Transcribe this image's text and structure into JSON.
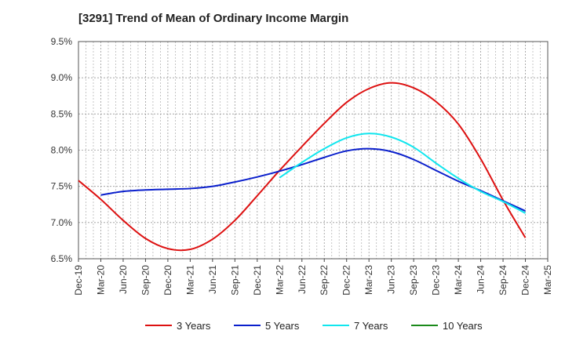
{
  "chart_data": {
    "type": "line",
    "title": "[3291]  Trend of Mean of Ordinary Income Margin",
    "xlabel": "",
    "ylabel": "",
    "x_ticks": [
      "Dec-19",
      "Mar-20",
      "Jun-20",
      "Sep-20",
      "Dec-20",
      "Mar-21",
      "Jun-21",
      "Sep-21",
      "Dec-21",
      "Mar-22",
      "Jun-22",
      "Sep-22",
      "Dec-22",
      "Mar-23",
      "Jun-23",
      "Sep-23",
      "Dec-23",
      "Mar-24",
      "Jun-24",
      "Sep-24",
      "Dec-24",
      "Mar-25"
    ],
    "y_ticks": [
      "6.5%",
      "7.0%",
      "7.5%",
      "8.0%",
      "8.5%",
      "9.0%",
      "9.5%"
    ],
    "ylim": [
      6.5,
      9.5
    ],
    "grid": true,
    "legend_position": "bottom",
    "series": [
      {
        "name": "3 Years",
        "color": "#dd1111",
        "points": [
          [
            "Dec-19",
            7.58
          ],
          [
            "Mar-20",
            7.32
          ],
          [
            "Jun-20",
            7.03
          ],
          [
            "Sep-20",
            6.78
          ],
          [
            "Dec-20",
            6.64
          ],
          [
            "Mar-21",
            6.63
          ],
          [
            "Jun-21",
            6.77
          ],
          [
            "Sep-21",
            7.03
          ],
          [
            "Dec-21",
            7.37
          ],
          [
            "Mar-22",
            7.72
          ],
          [
            "Jun-22",
            8.05
          ],
          [
            "Sep-22",
            8.37
          ],
          [
            "Dec-22",
            8.66
          ],
          [
            "Mar-23",
            8.85
          ],
          [
            "Jun-23",
            8.93
          ],
          [
            "Sep-23",
            8.86
          ],
          [
            "Dec-23",
            8.67
          ],
          [
            "Mar-24",
            8.36
          ],
          [
            "Jun-24",
            7.88
          ],
          [
            "Sep-24",
            7.31
          ],
          [
            "Dec-24",
            6.79
          ]
        ]
      },
      {
        "name": "5 Years",
        "color": "#0a1fcc",
        "points": [
          [
            "Mar-20",
            7.38
          ],
          [
            "Jun-20",
            7.43
          ],
          [
            "Sep-20",
            7.45
          ],
          [
            "Dec-20",
            7.46
          ],
          [
            "Mar-21",
            7.47
          ],
          [
            "Jun-21",
            7.5
          ],
          [
            "Sep-21",
            7.56
          ],
          [
            "Dec-21",
            7.63
          ],
          [
            "Mar-22",
            7.71
          ],
          [
            "Jun-22",
            7.8
          ],
          [
            "Sep-22",
            7.9
          ],
          [
            "Dec-22",
            7.99
          ],
          [
            "Mar-23",
            8.02
          ],
          [
            "Jun-23",
            7.98
          ],
          [
            "Sep-23",
            7.87
          ],
          [
            "Dec-23",
            7.72
          ],
          [
            "Mar-24",
            7.57
          ],
          [
            "Jun-24",
            7.44
          ],
          [
            "Sep-24",
            7.3
          ],
          [
            "Dec-24",
            7.16
          ]
        ]
      },
      {
        "name": "7 Years",
        "color": "#11e6ee",
        "points": [
          [
            "Mar-22",
            7.62
          ],
          [
            "Jun-22",
            7.83
          ],
          [
            "Sep-22",
            8.02
          ],
          [
            "Dec-22",
            8.17
          ],
          [
            "Mar-23",
            8.23
          ],
          [
            "Jun-23",
            8.18
          ],
          [
            "Sep-23",
            8.04
          ],
          [
            "Dec-23",
            7.82
          ],
          [
            "Mar-24",
            7.61
          ],
          [
            "Jun-24",
            7.43
          ],
          [
            "Sep-24",
            7.29
          ],
          [
            "Dec-24",
            7.13
          ]
        ]
      },
      {
        "name": "10 Years",
        "color": "#1a8a1a",
        "points": []
      }
    ]
  }
}
